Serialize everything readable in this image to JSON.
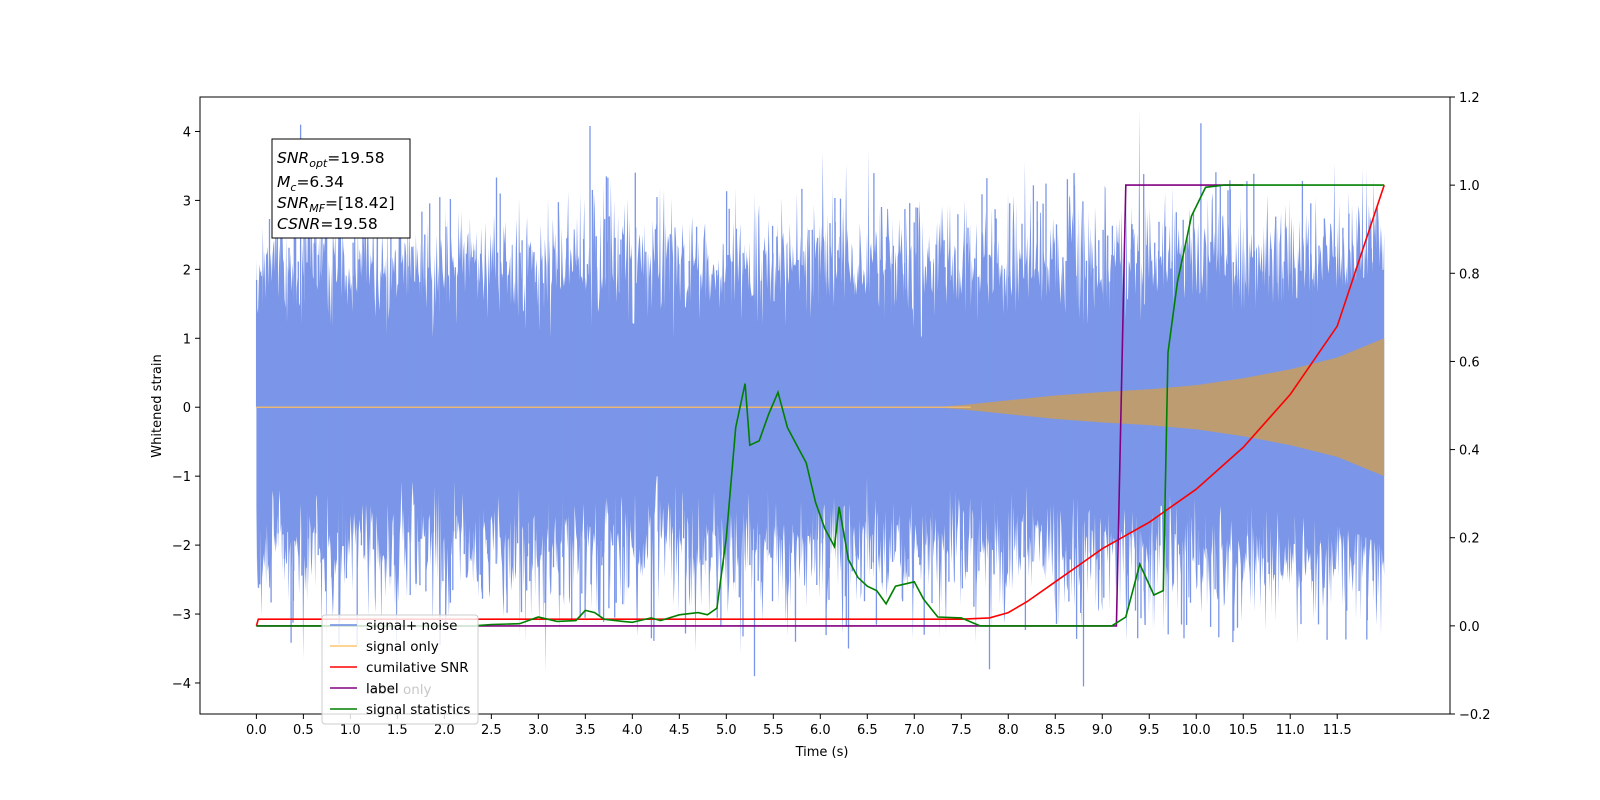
{
  "chart_data": {
    "type": "line",
    "xlabel": "Time (s)",
    "ylabel": "Whitened strain",
    "xlim": [
      -0.6,
      12.7
    ],
    "ylim": [
      -4.45,
      4.5
    ],
    "y2lim": [
      -0.2,
      1.2
    ],
    "x_ticks": [
      "0.0",
      "0.5",
      "1.0",
      "1.5",
      "2.0",
      "2.5",
      "3.0",
      "3.5",
      "4.0",
      "4.5",
      "5.0",
      "5.5",
      "6.0",
      "6.5",
      "7.0",
      "7.5",
      "8.0",
      "8.5",
      "9.0",
      "9.5",
      "10.0",
      "10.5",
      "11.0",
      "11.5"
    ],
    "y_ticks": [
      "−4",
      "−3",
      "−2",
      "−1",
      "0",
      "1",
      "2",
      "3",
      "4"
    ],
    "y2_ticks": [
      "−0.2",
      "0.0",
      "0.2",
      "0.4",
      "0.6",
      "0.8",
      "1.0",
      "1.2"
    ],
    "info_box": {
      "line1_main": "SNR",
      "line1_sub": "opt",
      "line1_val": "=19.58",
      "line2_main": "M",
      "line2_sub": "c",
      "line2_val": "=6.34",
      "line3_main": "SNR",
      "line3_sub": "MF",
      "line3_val": "=[18.42]",
      "line4_main": "CSNR",
      "line4_val": "=19.58"
    },
    "legend_placement": "lower-left",
    "series": [
      {
        "name": "signal+ noise",
        "color": "#6a8be6",
        "axis": "left",
        "noise_amplitude": 1.0,
        "x_range": [
          0.0,
          12.0
        ],
        "peak_spikes": [
          [
            0.47,
            4.1
          ],
          [
            3.55,
            4.08
          ],
          [
            10.05,
            4.12
          ],
          [
            5.3,
            -3.9
          ],
          [
            8.8,
            -4.05
          ],
          [
            7.8,
            -3.8
          ],
          [
            9.87,
            -3.35
          ],
          [
            6.3,
            -3.5
          ]
        ]
      },
      {
        "name": "signal only",
        "color": "#bc9a6c",
        "axis": "left",
        "envelope": [
          [
            0.0,
            0.0
          ],
          [
            7.2,
            0.0
          ],
          [
            7.5,
            0.03
          ],
          [
            8.0,
            0.1
          ],
          [
            8.5,
            0.17
          ],
          [
            9.0,
            0.22
          ],
          [
            9.5,
            0.26
          ],
          [
            10.0,
            0.32
          ],
          [
            10.5,
            0.42
          ],
          [
            11.0,
            0.55
          ],
          [
            11.5,
            0.72
          ],
          [
            12.0,
            1.0
          ]
        ]
      },
      {
        "name": "cumilative SNR",
        "color": "#ff0000",
        "axis": "right",
        "points": [
          [
            0.0,
            0.0
          ],
          [
            0.02,
            0.015
          ],
          [
            7.5,
            0.015
          ],
          [
            7.8,
            0.018
          ],
          [
            8.0,
            0.03
          ],
          [
            8.2,
            0.055
          ],
          [
            8.5,
            0.1
          ],
          [
            8.8,
            0.145
          ],
          [
            9.0,
            0.175
          ],
          [
            9.5,
            0.235
          ],
          [
            10.0,
            0.31
          ],
          [
            10.5,
            0.405
          ],
          [
            11.0,
            0.525
          ],
          [
            11.5,
            0.68
          ],
          [
            12.0,
            1.0
          ]
        ]
      },
      {
        "name": "label only",
        "color": "#800080",
        "axis": "right",
        "points": [
          [
            0.0,
            0.0
          ],
          [
            9.15,
            0.0
          ],
          [
            9.25,
            1.0
          ],
          [
            10.5,
            1.0
          ]
        ]
      },
      {
        "name": "label",
        "color": "#800080",
        "axis": "right",
        "hidden_line": true
      },
      {
        "name": "signal statistics",
        "color": "#008000",
        "axis": "right",
        "points": [
          [
            0.0,
            0.0
          ],
          [
            2.3,
            0.0
          ],
          [
            2.5,
            0.003
          ],
          [
            2.8,
            0.005
          ],
          [
            3.0,
            0.02
          ],
          [
            3.2,
            0.01
          ],
          [
            3.4,
            0.012
          ],
          [
            3.5,
            0.035
          ],
          [
            3.6,
            0.03
          ],
          [
            3.7,
            0.015
          ],
          [
            3.9,
            0.01
          ],
          [
            4.0,
            0.008
          ],
          [
            4.2,
            0.018
          ],
          [
            4.3,
            0.012
          ],
          [
            4.5,
            0.025
          ],
          [
            4.7,
            0.03
          ],
          [
            4.8,
            0.025
          ],
          [
            4.9,
            0.04
          ],
          [
            5.0,
            0.2
          ],
          [
            5.1,
            0.45
          ],
          [
            5.2,
            0.55
          ],
          [
            5.25,
            0.41
          ],
          [
            5.35,
            0.42
          ],
          [
            5.45,
            0.48
          ],
          [
            5.55,
            0.53
          ],
          [
            5.65,
            0.45
          ],
          [
            5.75,
            0.41
          ],
          [
            5.85,
            0.37
          ],
          [
            5.95,
            0.28
          ],
          [
            6.05,
            0.22
          ],
          [
            6.15,
            0.18
          ],
          [
            6.2,
            0.27
          ],
          [
            6.3,
            0.15
          ],
          [
            6.4,
            0.11
          ],
          [
            6.5,
            0.09
          ],
          [
            6.6,
            0.08
          ],
          [
            6.7,
            0.05
          ],
          [
            6.8,
            0.09
          ],
          [
            7.0,
            0.1
          ],
          [
            7.1,
            0.06
          ],
          [
            7.25,
            0.02
          ],
          [
            7.5,
            0.018
          ],
          [
            7.7,
            0.0
          ],
          [
            9.1,
            0.0
          ],
          [
            9.25,
            0.02
          ],
          [
            9.4,
            0.14
          ],
          [
            9.55,
            0.07
          ],
          [
            9.65,
            0.08
          ],
          [
            9.7,
            0.62
          ],
          [
            9.8,
            0.78
          ],
          [
            9.95,
            0.93
          ],
          [
            10.1,
            0.995
          ],
          [
            10.3,
            1.0
          ],
          [
            12.0,
            1.0
          ]
        ]
      }
    ]
  }
}
